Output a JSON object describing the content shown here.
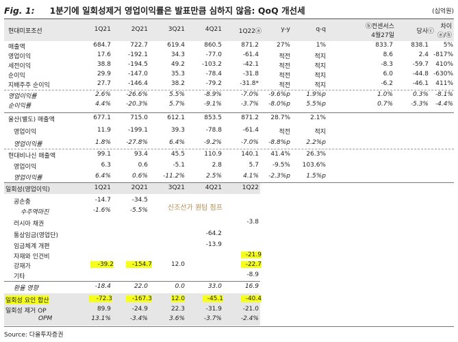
{
  "title": {
    "label": "Fig. 1:",
    "text": "1분기에 일회성제거 영업이익률은 발표만큼 심하지 않음: QoQ 개선세"
  },
  "unit": "(십억원)",
  "header": {
    "name": "현대미포조선",
    "cols": [
      "1Q21",
      "2Q21",
      "3Q21",
      "4Q21",
      "1Q22ⓐ",
      "y-y",
      "q-q"
    ],
    "consensus": [
      "ⓑ컨센서스",
      "4월27일"
    ],
    "ours": "당사ⓒ",
    "diff": [
      "차이",
      "ⓐ/ⓑ"
    ]
  },
  "main_rows": [
    {
      "label": "매출액",
      "vals": [
        "684.7",
        "722.7",
        "619.4",
        "860.5",
        "871.2",
        "27%",
        "1%",
        "833.7",
        "838.1",
        "5%"
      ]
    },
    {
      "label": "영업이익",
      "vals": [
        "17.6",
        "-192.1",
        "34.3",
        "-77.0",
        "-61.4",
        "적전",
        "적지",
        "8.6",
        "2.4",
        "-817%"
      ]
    },
    {
      "label": "세전이익",
      "vals": [
        "38.8",
        "-194.5",
        "49.2",
        "-103.2",
        "-42.1",
        "적전",
        "적지",
        "-8.3",
        "-59.7",
        "410%"
      ]
    },
    {
      "label": "순이익",
      "vals": [
        "29.9",
        "-147.0",
        "35.3",
        "-78.4",
        "-31.8",
        "적전",
        "적지",
        "6.0",
        "-44.8",
        "-630%"
      ]
    },
    {
      "label": "지배주주 순이익",
      "vals": [
        "27.7",
        "-146.4",
        "38.2",
        "-79.2",
        "-31.8*",
        "적전",
        "적지",
        "-6.2",
        "-46.1",
        "411%"
      ]
    },
    {
      "label": "영업이익률",
      "vals": [
        "2.6%",
        "-26.6%",
        "5.5%",
        "-8.9%",
        "-7.0%",
        "-9.6%p",
        "1.9%p",
        "1.0%",
        "0.3%",
        "-8.1%"
      ]
    },
    {
      "label": "순이익률",
      "vals": [
        "4.4%",
        "-20.3%",
        "5.7%",
        "-9.1%",
        "-3.7%",
        "-8.0%p",
        "5.5%p",
        "0.7%",
        "-5.3%",
        "-4.4%"
      ]
    },
    {
      "label": "울산(별도) 매출액",
      "vals": [
        "677.1",
        "715.0",
        "612.1",
        "853.5",
        "871.2",
        "28.7%",
        "2.1%"
      ]
    },
    {
      "label": "영업이익",
      "vals": [
        "11.9",
        "-199.1",
        "39.3",
        "-78.8",
        "-61.4",
        "적전",
        "적지"
      ]
    },
    {
      "label": "영업이익률",
      "vals": [
        "1.8%",
        "-27.8%",
        "6.4%",
        "-9.2%",
        "-7.0%",
        "-8.8%p",
        "2.2%p"
      ]
    },
    {
      "label": "현대비나신 매출액",
      "vals": [
        "99.1",
        "93.4",
        "45.5",
        "110.9",
        "140.1",
        "41.4%",
        "26.3%"
      ]
    },
    {
      "label": "영업이익",
      "vals": [
        "6.3",
        "0.6",
        "-5.1",
        "2.8",
        "5.7",
        "-9.5%",
        "103.6%"
      ]
    },
    {
      "label": "영업이익률",
      "vals": [
        "6.4%",
        "0.6%",
        "-11.2%",
        "2.5%",
        "4.1%",
        "-2.3%p",
        "1.5%p"
      ]
    }
  ],
  "one_off": {
    "header": {
      "name": "일회성(영업이익)",
      "cols": [
        "1Q21",
        "2Q21",
        "3Q21",
        "4Q21",
        "1Q22"
      ]
    },
    "rows": [
      {
        "label": "공손충",
        "vals": [
          "-14.7",
          "-34.5",
          "",
          "",
          ""
        ]
      },
      {
        "label": "수주역마진",
        "vals": [
          "-1.6%",
          "-5.5%",
          "",
          "",
          ""
        ]
      },
      {
        "label": "러시아 채권",
        "vals": [
          "",
          "",
          "",
          "",
          "-3.8"
        ]
      },
      {
        "label": "통상임금(영업단)",
        "vals": [
          "",
          "",
          "",
          "-64.2",
          ""
        ]
      },
      {
        "label": "임금체계 개편",
        "vals": [
          "",
          "",
          "",
          "-13.9",
          ""
        ]
      },
      {
        "label": "자재와 인건비",
        "vals": [
          "",
          "",
          "",
          "",
          "-21.9"
        ]
      },
      {
        "label": "강재가",
        "vals": [
          "-39.2",
          "-154.7",
          "12.0",
          "",
          "-22.7"
        ]
      },
      {
        "label": "기타",
        "vals": [
          "",
          "",
          "",
          "",
          "-8.9"
        ]
      },
      {
        "label": "환율 영향",
        "vals": [
          "-18.4",
          "22.0",
          "0.0",
          "33.0",
          "16.9"
        ]
      },
      {
        "label": "일회성 요인 합산",
        "vals": [
          "-72.3",
          "-167.3",
          "12.0",
          "-45.1",
          "-40.4"
        ]
      },
      {
        "label": "일회성 제거 OP",
        "vals": [
          "89.9",
          "-24.9",
          "22.3",
          "-31.9",
          "-21.0"
        ]
      },
      {
        "label": "OPM",
        "vals": [
          "13.1%",
          "-3.4%",
          "3.6%",
          "-3.7%",
          "-2.4%"
        ]
      }
    ],
    "note": "신조선가 퀀텀 점프"
  },
  "source": "Source: 다올투자증권"
}
